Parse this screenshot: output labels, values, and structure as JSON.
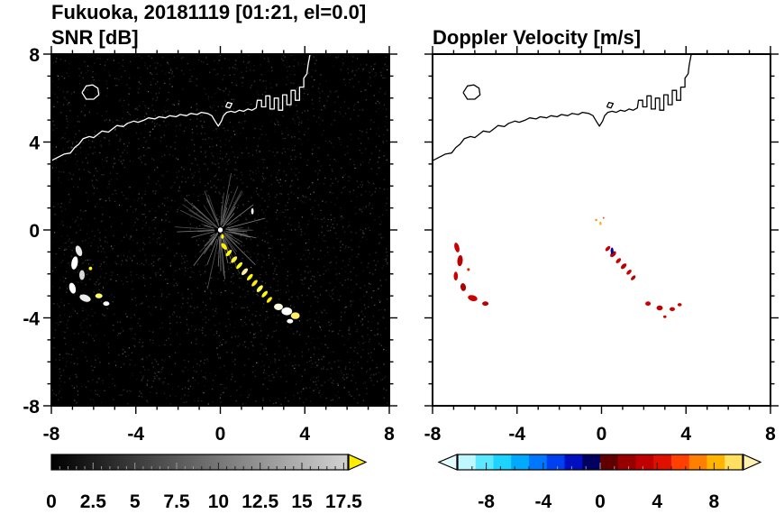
{
  "header": {
    "title": "Fukuoka, 20181119 [01:21, el=0.0]"
  },
  "coastline": {
    "polylines": [
      [
        [
          -8.0,
          3.15
        ],
        [
          -7.7,
          3.3
        ],
        [
          -7.4,
          3.45
        ],
        [
          -7.1,
          3.5
        ],
        [
          -6.9,
          3.75
        ],
        [
          -6.7,
          3.9
        ],
        [
          -6.5,
          4.15
        ],
        [
          -6.2,
          4.25
        ],
        [
          -6.0,
          4.2
        ],
        [
          -5.8,
          4.35
        ],
        [
          -5.6,
          4.5
        ],
        [
          -5.3,
          4.45
        ],
        [
          -5.1,
          4.6
        ],
        [
          -4.9,
          4.75
        ],
        [
          -4.6,
          4.7
        ],
        [
          -4.4,
          4.85
        ],
        [
          -4.1,
          4.95
        ],
        [
          -3.9,
          4.9
        ],
        [
          -3.6,
          5.0
        ],
        [
          -3.4,
          5.1
        ],
        [
          -3.1,
          5.05
        ],
        [
          -2.9,
          5.15
        ],
        [
          -2.6,
          5.1
        ],
        [
          -2.4,
          5.2
        ],
        [
          -2.1,
          5.15
        ],
        [
          -1.9,
          5.25
        ],
        [
          -1.6,
          5.2
        ],
        [
          -1.4,
          5.3
        ],
        [
          -1.1,
          5.25
        ],
        [
          -0.9,
          5.35
        ],
        [
          -0.6,
          5.3
        ],
        [
          -0.4,
          5.2
        ],
        [
          -0.25,
          4.95
        ],
        [
          -0.1,
          4.72
        ],
        [
          0.05,
          4.95
        ],
        [
          0.15,
          5.2
        ],
        [
          0.3,
          5.35
        ],
        [
          0.5,
          5.4
        ],
        [
          0.7,
          5.35
        ],
        [
          0.9,
          5.45
        ],
        [
          1.1,
          5.4
        ],
        [
          1.3,
          5.5
        ],
        [
          1.5,
          5.45
        ],
        [
          1.7,
          5.55
        ],
        [
          1.75,
          5.9
        ],
        [
          1.95,
          5.9
        ],
        [
          1.95,
          5.6
        ],
        [
          2.15,
          5.6
        ],
        [
          2.15,
          6.1
        ],
        [
          2.35,
          6.1
        ],
        [
          2.35,
          5.5
        ],
        [
          2.55,
          5.5
        ],
        [
          2.55,
          6.0
        ],
        [
          2.75,
          6.0
        ],
        [
          2.75,
          5.45
        ],
        [
          2.95,
          5.45
        ],
        [
          2.95,
          6.15
        ],
        [
          3.15,
          6.15
        ],
        [
          3.15,
          5.7
        ],
        [
          3.35,
          5.7
        ],
        [
          3.35,
          6.35
        ],
        [
          3.55,
          6.35
        ],
        [
          3.55,
          5.9
        ],
        [
          3.75,
          5.9
        ],
        [
          3.75,
          6.5
        ],
        [
          3.95,
          6.5
        ],
        [
          3.95,
          6.9
        ],
        [
          4.1,
          7.1
        ],
        [
          4.15,
          7.5
        ],
        [
          4.25,
          8.0
        ]
      ],
      [
        [
          -6.55,
          6.25
        ],
        [
          -6.35,
          6.55
        ],
        [
          -6.05,
          6.6
        ],
        [
          -5.8,
          6.45
        ],
        [
          -5.75,
          6.15
        ],
        [
          -6.0,
          5.95
        ],
        [
          -6.35,
          5.95
        ],
        [
          -6.55,
          6.25
        ]
      ],
      [
        [
          0.25,
          5.6
        ],
        [
          0.35,
          5.8
        ],
        [
          0.55,
          5.75
        ],
        [
          0.45,
          5.55
        ],
        [
          0.25,
          5.6
        ]
      ]
    ]
  },
  "chart_data": [
    {
      "type": "heatmap",
      "name": "snr",
      "title": "SNR [dB]",
      "xlim": [
        -8,
        8
      ],
      "ylim": [
        -8,
        8
      ],
      "xticks": [
        -8,
        -4,
        0,
        4,
        8
      ],
      "yticks": [
        -8,
        -4,
        0,
        4,
        8
      ],
      "minor_tick_step": 1,
      "show_y_labels": true,
      "background": "#000000",
      "coast_color": "#ffffff",
      "noise": true,
      "echoes": [
        {
          "x": -6.7,
          "y": -0.95,
          "w": 0.28,
          "h": 0.5,
          "c": "#e8e8e8",
          "r": -20
        },
        {
          "x": -6.9,
          "y": -1.5,
          "w": 0.3,
          "h": 0.6,
          "c": "#ffffff",
          "r": 10
        },
        {
          "x": -6.55,
          "y": -2.05,
          "w": 0.26,
          "h": 0.45,
          "c": "#d8d8d8",
          "r": 0
        },
        {
          "x": -7.0,
          "y": -2.65,
          "w": 0.3,
          "h": 0.5,
          "c": "#ffffff",
          "r": -15
        },
        {
          "x": -6.4,
          "y": -3.1,
          "w": 0.55,
          "h": 0.3,
          "c": "#ececec",
          "r": 20
        },
        {
          "x": -6.15,
          "y": -1.75,
          "w": 0.16,
          "h": 0.16,
          "c": "#ffff00",
          "r": 0
        },
        {
          "x": -5.75,
          "y": -3.0,
          "w": 0.34,
          "h": 0.22,
          "c": "#ffff66",
          "r": 0
        },
        {
          "x": -5.4,
          "y": -3.35,
          "w": 0.3,
          "h": 0.2,
          "c": "#ffffff",
          "r": 0
        },
        {
          "x": 0.0,
          "y": 0.0,
          "w": 0.22,
          "h": 0.22,
          "c": "#ffffff",
          "r": 0
        },
        {
          "x": 0.1,
          "y": -0.3,
          "w": 0.14,
          "h": 0.2,
          "c": "#ffff00",
          "r": 0
        },
        {
          "x": 0.18,
          "y": -0.75,
          "w": 0.2,
          "h": 0.35,
          "c": "#ffee00",
          "r": -40
        },
        {
          "x": 0.4,
          "y": -1.05,
          "w": 0.38,
          "h": 0.16,
          "c": "#ffff00",
          "r": -48
        },
        {
          "x": 0.65,
          "y": -1.35,
          "w": 0.38,
          "h": 0.18,
          "c": "#ffee33",
          "r": -48
        },
        {
          "x": 0.9,
          "y": -1.62,
          "w": 0.4,
          "h": 0.16,
          "c": "#ffff00",
          "r": -48
        },
        {
          "x": 1.15,
          "y": -1.9,
          "w": 0.4,
          "h": 0.18,
          "c": "#fff0a0",
          "r": -48
        },
        {
          "x": 1.4,
          "y": -2.15,
          "w": 0.38,
          "h": 0.16,
          "c": "#ffff00",
          "r": -48
        },
        {
          "x": 1.62,
          "y": -2.42,
          "w": 0.38,
          "h": 0.16,
          "c": "#ffee00",
          "r": -48
        },
        {
          "x": 1.87,
          "y": -2.67,
          "w": 0.4,
          "h": 0.18,
          "c": "#ffff44",
          "r": -48
        },
        {
          "x": 2.1,
          "y": -2.92,
          "w": 0.38,
          "h": 0.16,
          "c": "#ffff00",
          "r": -48
        },
        {
          "x": 2.32,
          "y": -3.18,
          "w": 0.34,
          "h": 0.15,
          "c": "#ffee00",
          "r": -48
        },
        {
          "x": 1.52,
          "y": 0.85,
          "w": 0.12,
          "h": 0.28,
          "c": "#ffffff",
          "r": 0
        },
        {
          "x": 2.75,
          "y": -3.5,
          "w": 0.42,
          "h": 0.3,
          "c": "#fffde0",
          "r": 0
        },
        {
          "x": 3.15,
          "y": -3.7,
          "w": 0.5,
          "h": 0.36,
          "c": "#ffffff",
          "r": 0
        },
        {
          "x": 3.55,
          "y": -3.9,
          "w": 0.42,
          "h": 0.3,
          "c": "#ffee66",
          "r": 0
        },
        {
          "x": 3.3,
          "y": -4.15,
          "w": 0.3,
          "h": 0.2,
          "c": "#ffffff",
          "r": 0
        }
      ],
      "colorbar": {
        "min": 0,
        "max": 17.75,
        "tick_values": [
          0,
          2.5,
          5,
          7.5,
          10,
          12.5,
          15,
          17.5
        ],
        "tick_labels": [
          "0",
          "2.5",
          "5",
          "7.5",
          "10",
          "12.5",
          "15",
          "17.5"
        ],
        "minor_step": 0.5,
        "gradient": [
          "#000000",
          "#d2d2d2"
        ],
        "end_arrow_color": "#ffee00"
      }
    },
    {
      "type": "heatmap",
      "name": "velocity",
      "title": "Doppler Velocity [m/s]",
      "xlim": [
        -8,
        8
      ],
      "ylim": [
        -8,
        8
      ],
      "xticks": [
        -8,
        -4,
        0,
        4,
        8
      ],
      "yticks": [
        -8,
        -4,
        0,
        4,
        8
      ],
      "minor_tick_step": 1,
      "show_y_labels": false,
      "background": "#ffffff",
      "coast_color": "#000000",
      "noise": false,
      "echoes": [
        {
          "x": -6.85,
          "y": -0.8,
          "w": 0.22,
          "h": 0.45,
          "c": "#cc0000",
          "r": -15
        },
        {
          "x": -6.7,
          "y": -1.4,
          "w": 0.26,
          "h": 0.5,
          "c": "#bb0000",
          "r": 5
        },
        {
          "x": -6.9,
          "y": -2.1,
          "w": 0.2,
          "h": 0.4,
          "c": "#cc0000",
          "r": 0
        },
        {
          "x": -6.55,
          "y": -2.6,
          "w": 0.26,
          "h": 0.36,
          "c": "#aa0000",
          "r": -10
        },
        {
          "x": -6.3,
          "y": -1.8,
          "w": 0.13,
          "h": 0.13,
          "c": "#dd2200",
          "r": 0
        },
        {
          "x": -6.1,
          "y": -3.1,
          "w": 0.46,
          "h": 0.26,
          "c": "#cc0000",
          "r": 15
        },
        {
          "x": -5.5,
          "y": -3.35,
          "w": 0.3,
          "h": 0.2,
          "c": "#bb0000",
          "r": 0
        },
        {
          "x": -0.25,
          "y": 0.45,
          "w": 0.1,
          "h": 0.1,
          "c": "#ff8800",
          "r": 0
        },
        {
          "x": -0.05,
          "y": 0.3,
          "w": 0.09,
          "h": 0.16,
          "c": "#ffaa00",
          "r": 0
        },
        {
          "x": 0.1,
          "y": 0.55,
          "w": 0.08,
          "h": 0.08,
          "c": "#ff4400",
          "r": 0
        },
        {
          "x": 0.3,
          "y": -0.85,
          "w": 0.3,
          "h": 0.16,
          "c": "#cc0000",
          "r": -45
        },
        {
          "x": 0.55,
          "y": -1.1,
          "w": 0.34,
          "h": 0.2,
          "c": "#bb0000",
          "r": -45
        },
        {
          "x": 0.5,
          "y": -0.95,
          "w": 0.14,
          "h": 0.3,
          "c": "#000099",
          "r": 0
        },
        {
          "x": 0.8,
          "y": -1.4,
          "w": 0.3,
          "h": 0.16,
          "c": "#cc0000",
          "r": -45
        },
        {
          "x": 1.05,
          "y": -1.65,
          "w": 0.32,
          "h": 0.18,
          "c": "#bb0000",
          "r": -45
        },
        {
          "x": 1.3,
          "y": -1.92,
          "w": 0.3,
          "h": 0.16,
          "c": "#cc0000",
          "r": -45
        },
        {
          "x": 1.5,
          "y": -2.18,
          "w": 0.28,
          "h": 0.15,
          "c": "#bb0000",
          "r": -45
        },
        {
          "x": 2.2,
          "y": -3.35,
          "w": 0.26,
          "h": 0.2,
          "c": "#cc0000",
          "r": 0
        },
        {
          "x": 2.75,
          "y": -3.55,
          "w": 0.3,
          "h": 0.22,
          "c": "#bb0000",
          "r": 0
        },
        {
          "x": 3.35,
          "y": -3.6,
          "w": 0.26,
          "h": 0.18,
          "c": "#cc0000",
          "r": 0
        },
        {
          "x": 3.7,
          "y": -3.4,
          "w": 0.2,
          "h": 0.15,
          "c": "#cc0000",
          "r": 0
        },
        {
          "x": 3.0,
          "y": -3.95,
          "w": 0.15,
          "h": 0.12,
          "c": "#cc0000",
          "r": 0
        }
      ],
      "colorbar": {
        "min": -10,
        "max": 10,
        "tick_values": [
          -8,
          -4,
          0,
          4,
          8
        ],
        "tick_labels": [
          "-8",
          "-4",
          "0",
          "4",
          "8"
        ],
        "minor_step": 1,
        "segment_colors": [
          "#bff7ff",
          "#5ce9ff",
          "#1fd3ff",
          "#00aaff",
          "#0077ff",
          "#0040f0",
          "#0010c0",
          "#000060",
          "#600000",
          "#980000",
          "#c00000",
          "#e01000",
          "#ff4000",
          "#ff7f00",
          "#ffb400",
          "#ffe060"
        ],
        "left_arrow_color": "#e4fbff",
        "right_arrow_color": "#fff2b0"
      }
    }
  ]
}
